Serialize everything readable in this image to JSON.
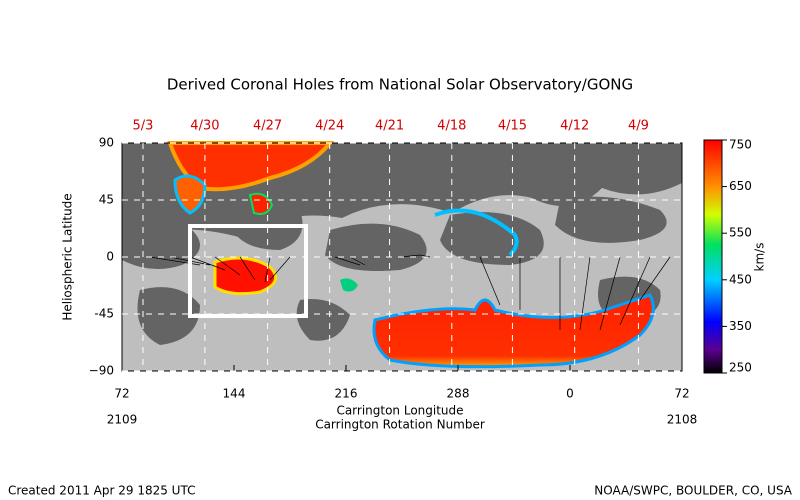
{
  "chart_data": {
    "type": "map",
    "title": "Derived Coronal Holes from National Solar Observatory/GONG",
    "xlabel": "Carrington Longitude",
    "xlabel2": "Carrington Rotation Number",
    "ylabel": "Heliospheric Latitude",
    "xlim": [
      72,
      432
    ],
    "xticks": [
      72,
      144,
      216,
      288,
      {
        "value": 360,
        "label": "0"
      },
      {
        "value": 432,
        "label": "72"
      }
    ],
    "ylim": [
      -90,
      90
    ],
    "yticks": [
      {
        "value": -90,
        "label": "−90"
      },
      -45,
      0,
      45,
      90
    ],
    "date_ticks": [
      {
        "value": 85.5,
        "label": "5/3"
      },
      {
        "value": 125.3,
        "label": "4/30"
      },
      {
        "value": 165.6,
        "label": "4/27"
      },
      {
        "value": 205.5,
        "label": "4/24"
      },
      {
        "value": 244,
        "label": "4/21"
      },
      {
        "value": 284,
        "label": "4/18"
      },
      {
        "value": 323,
        "label": "4/15"
      },
      {
        "value": 363,
        "label": "4/12"
      },
      {
        "value": 404,
        "label": "4/9"
      }
    ],
    "rotation_labels": [
      {
        "value": 72,
        "label": "2109"
      },
      {
        "value": 432,
        "label": "2108"
      }
    ],
    "colorbar": {
      "label": "km/s",
      "lim": [
        250,
        750
      ],
      "ticks": [
        250,
        350,
        450,
        550,
        650,
        750
      ]
    },
    "footer_left": "Created 2011 Apr 29 1825 UTC",
    "footer_right": "NOAA/SWPC, BOULDER, CO, USA"
  }
}
